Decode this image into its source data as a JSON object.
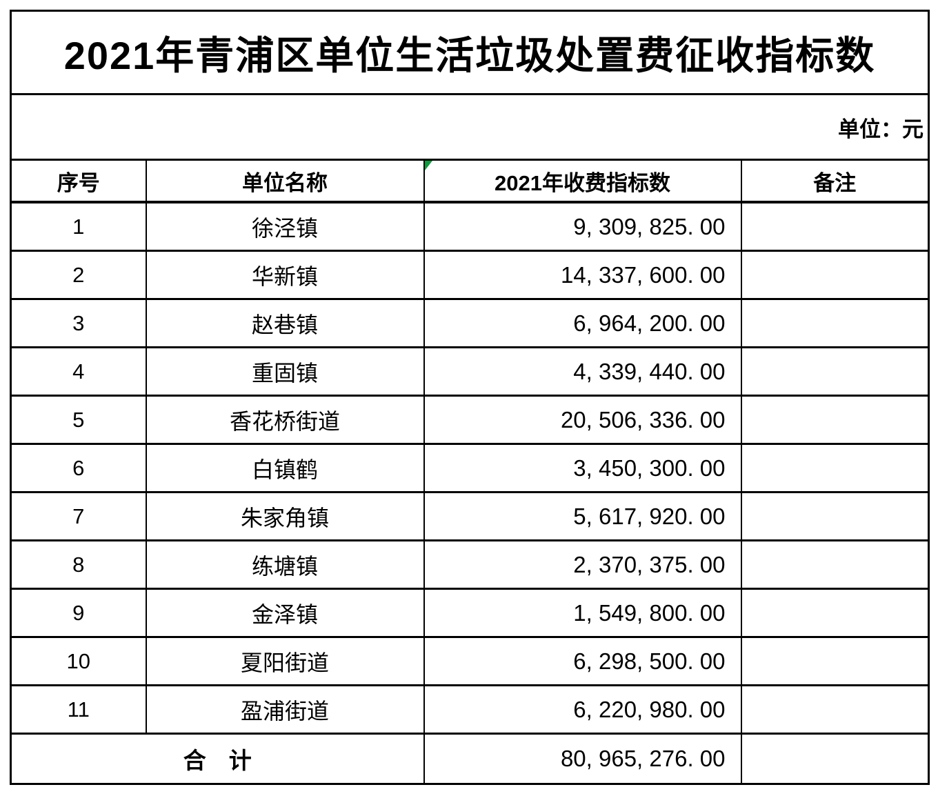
{
  "page": {
    "background": "#ffffff",
    "text_color": "#000000",
    "border_color": "#000000"
  },
  "title": "2021年青浦区单位生活垃圾处置费征收指标数",
  "unit_label": "单位：元",
  "icons": {
    "error_marker": {
      "name": "excel-error-triangle",
      "color": "#0a9e3c",
      "position": "top-left of 2021年收费指标数 header cell"
    }
  },
  "table": {
    "headers": [
      "序号",
      "单位名称",
      "2021年收费指标数",
      "备注"
    ],
    "rows": [
      {
        "no": "1",
        "name": "徐泾镇",
        "value": "9, 309, 825. 00",
        "remark": ""
      },
      {
        "no": "2",
        "name": "华新镇",
        "value": "14, 337, 600. 00",
        "remark": ""
      },
      {
        "no": "3",
        "name": "赵巷镇",
        "value": "6, 964, 200. 00",
        "remark": ""
      },
      {
        "no": "4",
        "name": "重固镇",
        "value": "4, 339, 440. 00",
        "remark": ""
      },
      {
        "no": "5",
        "name": "香花桥街道",
        "value": "20, 506, 336. 00",
        "remark": ""
      },
      {
        "no": "6",
        "name": "白镇鹤",
        "value": "3, 450, 300. 00",
        "remark": ""
      },
      {
        "no": "7",
        "name": "朱家角镇",
        "value": "5, 617, 920. 00",
        "remark": ""
      },
      {
        "no": "8",
        "name": "练塘镇",
        "value": "2, 370, 375. 00",
        "remark": ""
      },
      {
        "no": "9",
        "name": "金泽镇",
        "value": "1, 549, 800. 00",
        "remark": ""
      },
      {
        "no": "10",
        "name": "夏阳街道",
        "value": "6, 298, 500. 00",
        "remark": ""
      },
      {
        "no": "11",
        "name": "盈浦街道",
        "value": "6, 220, 980. 00",
        "remark": ""
      }
    ],
    "total": {
      "label": "合　计",
      "value": "80, 965, 276. 00",
      "remark": ""
    }
  }
}
